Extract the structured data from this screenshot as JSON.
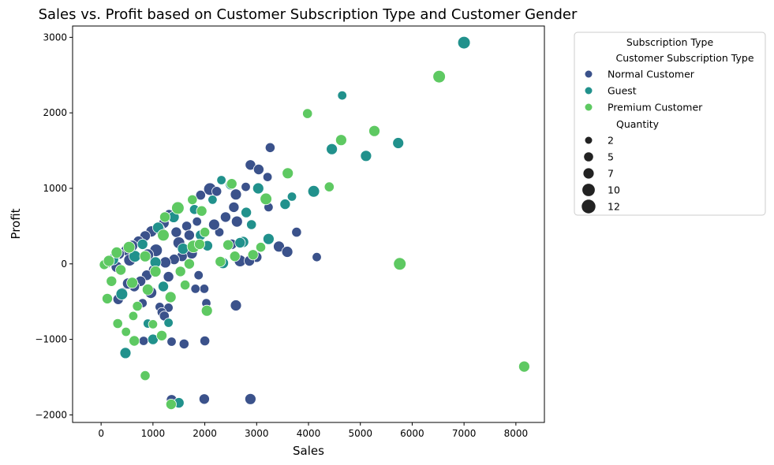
{
  "chart_data": {
    "type": "scatter",
    "title": "Sales vs. Profit based on Customer Subscription Type and Customer Gender",
    "xlabel": "Sales",
    "ylabel": "Profit",
    "xlim": [
      -550,
      8550
    ],
    "ylim": [
      -2100,
      3150
    ],
    "xticks": [
      0,
      1000,
      2000,
      3000,
      4000,
      5000,
      6000,
      7000,
      8000
    ],
    "yticks": [
      -2000,
      -1000,
      0,
      1000,
      2000,
      3000
    ],
    "grid": false,
    "legend": {
      "placement": "outside-right",
      "title": "Subscription Type",
      "hue_title": "Customer Subscription Type",
      "size_title": "Quantity",
      "size_entries": [
        {
          "label": "2",
          "q": 2
        },
        {
          "label": "5",
          "q": 5
        },
        {
          "label": "7",
          "q": 7
        },
        {
          "label": "10",
          "q": 10
        },
        {
          "label": "12",
          "q": 12
        }
      ]
    },
    "series": [
      {
        "name": "Normal Customer",
        "color": "#3b528b",
        "points": [
          [
            3980,
            2000,
            3
          ],
          [
            3260,
            1540,
            6
          ],
          [
            2880,
            1310,
            7
          ],
          [
            3040,
            1250,
            7
          ],
          [
            3210,
            1150,
            5
          ],
          [
            2790,
            1020,
            5
          ],
          [
            2100,
            990,
            10
          ],
          [
            2230,
            960,
            6
          ],
          [
            1920,
            910,
            6
          ],
          [
            2600,
            920,
            8
          ],
          [
            2560,
            750,
            7
          ],
          [
            3230,
            750,
            5
          ],
          [
            2280,
            420,
            5
          ],
          [
            2620,
            560,
            8
          ],
          [
            3770,
            420,
            6
          ],
          [
            3430,
            230,
            8
          ],
          [
            3590,
            160,
            8
          ],
          [
            4160,
            90,
            5
          ],
          [
            3000,
            90,
            7
          ],
          [
            2680,
            40,
            9
          ],
          [
            2860,
            40,
            7
          ],
          [
            1850,
            560,
            5
          ],
          [
            1650,
            500,
            6
          ],
          [
            1450,
            420,
            7
          ],
          [
            1310,
            660,
            5
          ],
          [
            1210,
            540,
            7
          ],
          [
            1120,
            460,
            8
          ],
          [
            970,
            430,
            8
          ],
          [
            850,
            370,
            7
          ],
          [
            720,
            300,
            7
          ],
          [
            600,
            240,
            8
          ],
          [
            480,
            180,
            7
          ],
          [
            350,
            130,
            7
          ],
          [
            250,
            80,
            7
          ],
          [
            180,
            40,
            7
          ],
          [
            120,
            10,
            6
          ],
          [
            1750,
            140,
            8
          ],
          [
            1560,
            100,
            7
          ],
          [
            1410,
            60,
            7
          ],
          [
            1240,
            20,
            8
          ],
          [
            1020,
            -80,
            8
          ],
          [
            880,
            -150,
            7
          ],
          [
            760,
            -230,
            7
          ],
          [
            640,
            -300,
            7
          ],
          [
            520,
            -260,
            8
          ],
          [
            410,
            -380,
            7
          ],
          [
            330,
            -470,
            7
          ],
          [
            1300,
            -170,
            7
          ],
          [
            1880,
            -150,
            5
          ],
          [
            1990,
            -330,
            5
          ],
          [
            1820,
            -330,
            5
          ],
          [
            2030,
            -520,
            5
          ],
          [
            2600,
            -550,
            8
          ],
          [
            1130,
            -570,
            5
          ],
          [
            1300,
            -580,
            5
          ],
          [
            1170,
            -640,
            5
          ],
          [
            1220,
            -690,
            6
          ],
          [
            800,
            -520,
            5
          ],
          [
            1360,
            -1030,
            5
          ],
          [
            1600,
            -1060,
            6
          ],
          [
            2000,
            -1020,
            6
          ],
          [
            820,
            -1020,
            5
          ],
          [
            1360,
            -1800,
            7
          ],
          [
            1990,
            -1790,
            7
          ],
          [
            2880,
            -1790,
            8
          ],
          [
            1060,
            180,
            10
          ],
          [
            1500,
            280,
            9
          ],
          [
            2400,
            620,
            7
          ],
          [
            2180,
            520,
            8
          ],
          [
            960,
            -380,
            9
          ],
          [
            550,
            50,
            9
          ],
          [
            300,
            -40,
            8
          ],
          [
            1700,
            380,
            7
          ],
          [
            2520,
            260,
            7
          ],
          [
            900,
            120,
            9
          ]
        ]
      },
      {
        "name": "Guest",
        "color": "#21918c",
        "points": [
          [
            7000,
            2930,
            10
          ],
          [
            4650,
            2230,
            5
          ],
          [
            5730,
            1600,
            8
          ],
          [
            4450,
            1520,
            8
          ],
          [
            5110,
            1430,
            8
          ],
          [
            4100,
            960,
            9
          ],
          [
            3030,
            1000,
            8
          ],
          [
            3550,
            790,
            7
          ],
          [
            3680,
            890,
            5
          ],
          [
            2800,
            680,
            7
          ],
          [
            3230,
            330,
            8
          ],
          [
            2740,
            290,
            8
          ],
          [
            2500,
            1050,
            7
          ],
          [
            2320,
            1110,
            5
          ],
          [
            2150,
            850,
            5
          ],
          [
            1800,
            720,
            6
          ],
          [
            1400,
            620,
            8
          ],
          [
            1100,
            480,
            8
          ],
          [
            1920,
            380,
            7
          ],
          [
            2350,
            10,
            8
          ],
          [
            2680,
            280,
            7
          ],
          [
            1300,
            -780,
            5
          ],
          [
            900,
            -790,
            5
          ],
          [
            1000,
            -1000,
            7
          ],
          [
            470,
            -1180,
            8
          ],
          [
            1500,
            -1840,
            7
          ],
          [
            650,
            100,
            9
          ],
          [
            400,
            -400,
            9
          ],
          [
            1580,
            200,
            8
          ],
          [
            800,
            260,
            7
          ],
          [
            230,
            60,
            8
          ],
          [
            2050,
            240,
            7
          ],
          [
            1200,
            -300,
            7
          ],
          [
            2900,
            520,
            6
          ],
          [
            1050,
            20,
            8
          ]
        ]
      },
      {
        "name": "Premium Customer",
        "color": "#5ec962",
        "points": [
          [
            6520,
            2480,
            10
          ],
          [
            3980,
            1990,
            6
          ],
          [
            4630,
            1640,
            8
          ],
          [
            5270,
            1760,
            8
          ],
          [
            3600,
            1200,
            8
          ],
          [
            3180,
            860,
            9
          ],
          [
            2520,
            1060,
            7
          ],
          [
            1480,
            740,
            10
          ],
          [
            1940,
            700,
            7
          ],
          [
            1760,
            850,
            6
          ],
          [
            4400,
            1020,
            6
          ],
          [
            5760,
            0,
            10
          ],
          [
            8160,
            -1360,
            8
          ],
          [
            2040,
            -620,
            8
          ],
          [
            1340,
            -440,
            8
          ],
          [
            1620,
            -280,
            6
          ],
          [
            1170,
            -950,
            7
          ],
          [
            1000,
            -800,
            5
          ],
          [
            850,
            -1480,
            6
          ],
          [
            640,
            -1020,
            7
          ],
          [
            320,
            -790,
            6
          ],
          [
            620,
            -690,
            5
          ],
          [
            1350,
            -1860,
            7
          ],
          [
            1780,
            230,
            10
          ],
          [
            1200,
            380,
            9
          ],
          [
            900,
            -340,
            8
          ],
          [
            600,
            -250,
            8
          ],
          [
            380,
            -80,
            7
          ],
          [
            200,
            -230,
            7
          ],
          [
            120,
            -460,
            7
          ],
          [
            540,
            220,
            9
          ],
          [
            850,
            100,
            8
          ],
          [
            2300,
            30,
            7
          ],
          [
            2580,
            100,
            7
          ],
          [
            3080,
            220,
            6
          ],
          [
            2450,
            250,
            7
          ],
          [
            1700,
            0,
            7
          ],
          [
            1900,
            260,
            7
          ],
          [
            1050,
            -100,
            8
          ],
          [
            480,
            -900,
            5
          ],
          [
            2930,
            120,
            7
          ],
          [
            1230,
            620,
            7
          ],
          [
            60,
            -10,
            6
          ],
          [
            150,
            40,
            8
          ],
          [
            300,
            150,
            8
          ],
          [
            700,
            -560,
            6
          ],
          [
            1530,
            -100,
            7
          ],
          [
            2000,
            420,
            6
          ]
        ]
      }
    ]
  }
}
